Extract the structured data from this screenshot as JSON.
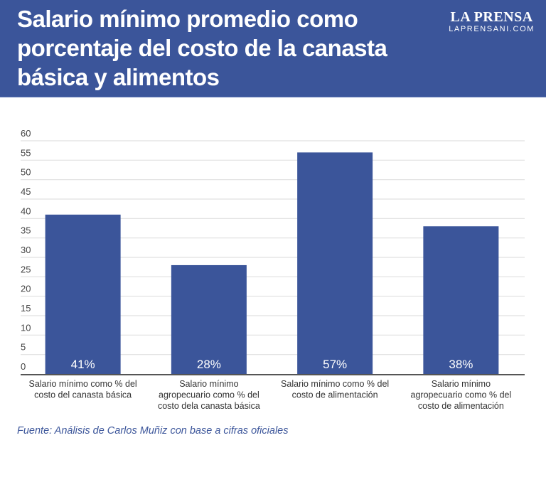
{
  "header": {
    "title": "Salario mínimo promedio como porcentaje del costo de la canasta básica y alimentos",
    "logo_name": "LA PRENSA",
    "logo_url": "LAPRENSANI.COM"
  },
  "colors": {
    "header_bg": "#3b559a",
    "bar": "#3b559a",
    "grid": "#e0e0e0",
    "axis": "#555555",
    "source_text": "#3b559a"
  },
  "chart_data": {
    "type": "bar",
    "title": "Salario mínimo promedio como porcentaje del costo de la canasta básica y alimentos",
    "categories": [
      [
        "Salario mínimo como % del",
        "costo del canasta básica"
      ],
      [
        "Salario mínimo",
        "agropecuario como % del",
        "costo dela canasta básica"
      ],
      [
        "Salario mínimo como % del",
        "costo de alimentación"
      ],
      [
        "Salario mínimo",
        "agropecuario como % del",
        "costo de alimentación"
      ]
    ],
    "values": [
      41,
      28,
      57,
      38
    ],
    "data_labels": [
      "41%",
      "28%",
      "57%",
      "38%"
    ],
    "ylim": [
      0,
      60
    ],
    "yticks": [
      "0",
      "5",
      "10",
      "15",
      "20",
      "25",
      "30",
      "35",
      "40",
      "45",
      "50",
      "55",
      "60"
    ],
    "xlabel": "",
    "ylabel": "",
    "grid": true,
    "legend": "none"
  },
  "footer": {
    "source": "Fuente: Análisis de Carlos Muñiz con base a cifras oficiales"
  }
}
